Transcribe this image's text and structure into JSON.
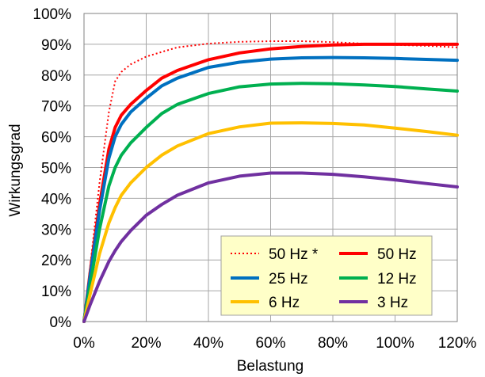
{
  "chart_data": {
    "type": "line",
    "xlabel": "Belastung",
    "ylabel": "Wirkungsgrad",
    "xlim": [
      0,
      1.2
    ],
    "ylim": [
      0,
      1.0
    ],
    "x_tick_labels": [
      "0%",
      "20%",
      "40%",
      "60%",
      "80%",
      "100%",
      "120%"
    ],
    "y_tick_labels": [
      "0%",
      "10%",
      "20%",
      "30%",
      "40%",
      "50%",
      "60%",
      "70%",
      "80%",
      "90%",
      "100%"
    ],
    "grid": true,
    "legend_position": "bottom-right",
    "series": [
      {
        "name": "50 Hz *",
        "color": "#ff0000",
        "dash": "dotted",
        "x": [
          0,
          0.02,
          0.05,
          0.08,
          0.1,
          0.12,
          0.15,
          0.2,
          0.25,
          0.3,
          0.4,
          0.5,
          0.6,
          0.7,
          0.8,
          0.9,
          1.0,
          1.1,
          1.2
        ],
        "y": [
          0,
          0.18,
          0.45,
          0.68,
          0.78,
          0.81,
          0.835,
          0.86,
          0.875,
          0.89,
          0.902,
          0.908,
          0.91,
          0.91,
          0.907,
          0.902,
          0.898,
          0.895,
          0.89
        ]
      },
      {
        "name": "50 Hz",
        "color": "#ff0000",
        "dash": "solid",
        "x": [
          0,
          0.02,
          0.05,
          0.08,
          0.1,
          0.12,
          0.15,
          0.2,
          0.25,
          0.3,
          0.4,
          0.5,
          0.6,
          0.7,
          0.8,
          0.9,
          1.0,
          1.1,
          1.2
        ],
        "y": [
          0,
          0.16,
          0.38,
          0.56,
          0.63,
          0.67,
          0.705,
          0.75,
          0.79,
          0.815,
          0.85,
          0.872,
          0.885,
          0.893,
          0.898,
          0.9,
          0.9,
          0.9,
          0.9
        ]
      },
      {
        "name": "25 Hz",
        "color": "#0070c0",
        "dash": "solid",
        "x": [
          0,
          0.02,
          0.05,
          0.08,
          0.1,
          0.12,
          0.15,
          0.2,
          0.25,
          0.3,
          0.4,
          0.5,
          0.6,
          0.7,
          0.8,
          0.9,
          1.0,
          1.1,
          1.2
        ],
        "y": [
          0,
          0.15,
          0.36,
          0.53,
          0.6,
          0.64,
          0.68,
          0.725,
          0.765,
          0.79,
          0.825,
          0.842,
          0.852,
          0.856,
          0.857,
          0.856,
          0.854,
          0.851,
          0.848
        ]
      },
      {
        "name": "12 Hz",
        "color": "#00b050",
        "dash": "solid",
        "x": [
          0,
          0.02,
          0.05,
          0.08,
          0.1,
          0.12,
          0.15,
          0.2,
          0.25,
          0.3,
          0.4,
          0.5,
          0.6,
          0.7,
          0.8,
          0.9,
          1.0,
          1.1,
          1.2
        ],
        "y": [
          0,
          0.12,
          0.3,
          0.44,
          0.5,
          0.54,
          0.58,
          0.63,
          0.675,
          0.705,
          0.74,
          0.762,
          0.771,
          0.773,
          0.772,
          0.768,
          0.763,
          0.755,
          0.748
        ]
      },
      {
        "name": "6 Hz",
        "color": "#ffc000",
        "dash": "solid",
        "x": [
          0,
          0.02,
          0.05,
          0.08,
          0.1,
          0.12,
          0.15,
          0.2,
          0.25,
          0.3,
          0.4,
          0.5,
          0.6,
          0.7,
          0.8,
          0.9,
          1.0,
          1.1,
          1.2
        ],
        "y": [
          0,
          0.09,
          0.22,
          0.32,
          0.37,
          0.41,
          0.45,
          0.5,
          0.54,
          0.57,
          0.61,
          0.632,
          0.644,
          0.645,
          0.643,
          0.638,
          0.628,
          0.617,
          0.605
        ]
      },
      {
        "name": "3 Hz",
        "color": "#7030a0",
        "dash": "solid",
        "x": [
          0,
          0.02,
          0.05,
          0.08,
          0.1,
          0.12,
          0.15,
          0.2,
          0.25,
          0.3,
          0.4,
          0.5,
          0.6,
          0.7,
          0.8,
          0.9,
          1.0,
          1.1,
          1.2
        ],
        "y": [
          0,
          0.055,
          0.13,
          0.195,
          0.23,
          0.26,
          0.295,
          0.345,
          0.38,
          0.41,
          0.45,
          0.472,
          0.482,
          0.482,
          0.478,
          0.47,
          0.46,
          0.448,
          0.437
        ]
      }
    ]
  }
}
